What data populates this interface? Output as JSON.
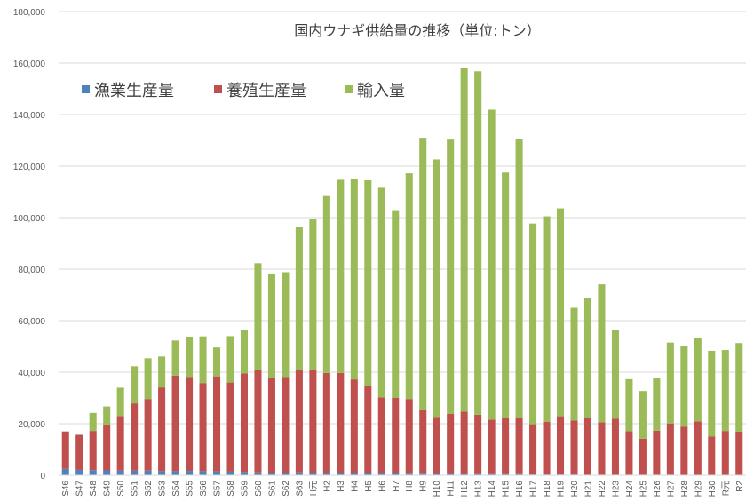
{
  "chart_data": {
    "type": "bar",
    "stacked": true,
    "title": "国内ウナギ供給量の推移（単位:トン）",
    "xlabel": "",
    "ylabel": "",
    "ylim": [
      0,
      180000
    ],
    "yticks": [
      0,
      20000,
      40000,
      60000,
      80000,
      100000,
      120000,
      140000,
      160000,
      180000
    ],
    "ytick_labels": [
      "0",
      "20,000",
      "40,000",
      "60,000",
      "80,000",
      "100,000",
      "120,000",
      "140,000",
      "160,000",
      "180,000"
    ],
    "grid": true,
    "legend_position": "top-left",
    "categories": [
      "S46",
      "S47",
      "S48",
      "S49",
      "S50",
      "S51",
      "S52",
      "S53",
      "S54",
      "S55",
      "S56",
      "S57",
      "S58",
      "S59",
      "S60",
      "S61",
      "S62",
      "S63",
      "H元",
      "H2",
      "H3",
      "H4",
      "H5",
      "H6",
      "H7",
      "H8",
      "H9",
      "H10",
      "H11",
      "H12",
      "H13",
      "H14",
      "H15",
      "H16",
      "H17",
      "H18",
      "H19",
      "H20",
      "H21",
      "H22",
      "H23",
      "H24",
      "H25",
      "H26",
      "H27",
      "H28",
      "H29",
      "H30",
      "R元",
      "R2"
    ],
    "series": [
      {
        "name": "漁業生産量",
        "color": "#4f81bd",
        "values": [
          2500,
          2100,
          2000,
          1900,
          1800,
          1800,
          1800,
          1600,
          1600,
          1700,
          1600,
          1500,
          1400,
          1300,
          1100,
          1000,
          1000,
          1100,
          900,
          900,
          900,
          800,
          800,
          700,
          700,
          600,
          600,
          500,
          500,
          500,
          400,
          400,
          400,
          400,
          300,
          300,
          300,
          300,
          200,
          200,
          200,
          200,
          200,
          200,
          200,
          100,
          100,
          100,
          100,
          100
        ]
      },
      {
        "name": "養殖生産量",
        "color": "#c0504d",
        "values": [
          14500,
          13600,
          15200,
          17400,
          21200,
          26100,
          27800,
          32500,
          37100,
          36500,
          34200,
          36900,
          34600,
          38200,
          39800,
          36600,
          37100,
          39700,
          39900,
          38800,
          38800,
          36400,
          33800,
          29500,
          29300,
          29000,
          24600,
          22100,
          23300,
          24200,
          23100,
          21200,
          21700,
          21700,
          19500,
          20500,
          22600,
          20900,
          22200,
          20300,
          21800,
          16900,
          14000,
          17100,
          19900,
          18700,
          20800,
          15000,
          17100,
          16800
        ]
      },
      {
        "name": "輸入量",
        "color": "#9bbb59",
        "values": [
          0,
          0,
          7000,
          7400,
          11000,
          14400,
          15800,
          12000,
          13600,
          15600,
          18100,
          11200,
          18000,
          16900,
          41400,
          40700,
          40700,
          55700,
          58500,
          68700,
          75000,
          77900,
          79900,
          81400,
          72900,
          87600,
          105800,
          100000,
          106500,
          133300,
          133300,
          120300,
          95400,
          108300,
          77900,
          79700,
          80700,
          43800,
          46400,
          53600,
          34200,
          20200,
          18500,
          20500,
          31400,
          31200,
          32400,
          33200,
          31400,
          34400
        ]
      }
    ]
  }
}
